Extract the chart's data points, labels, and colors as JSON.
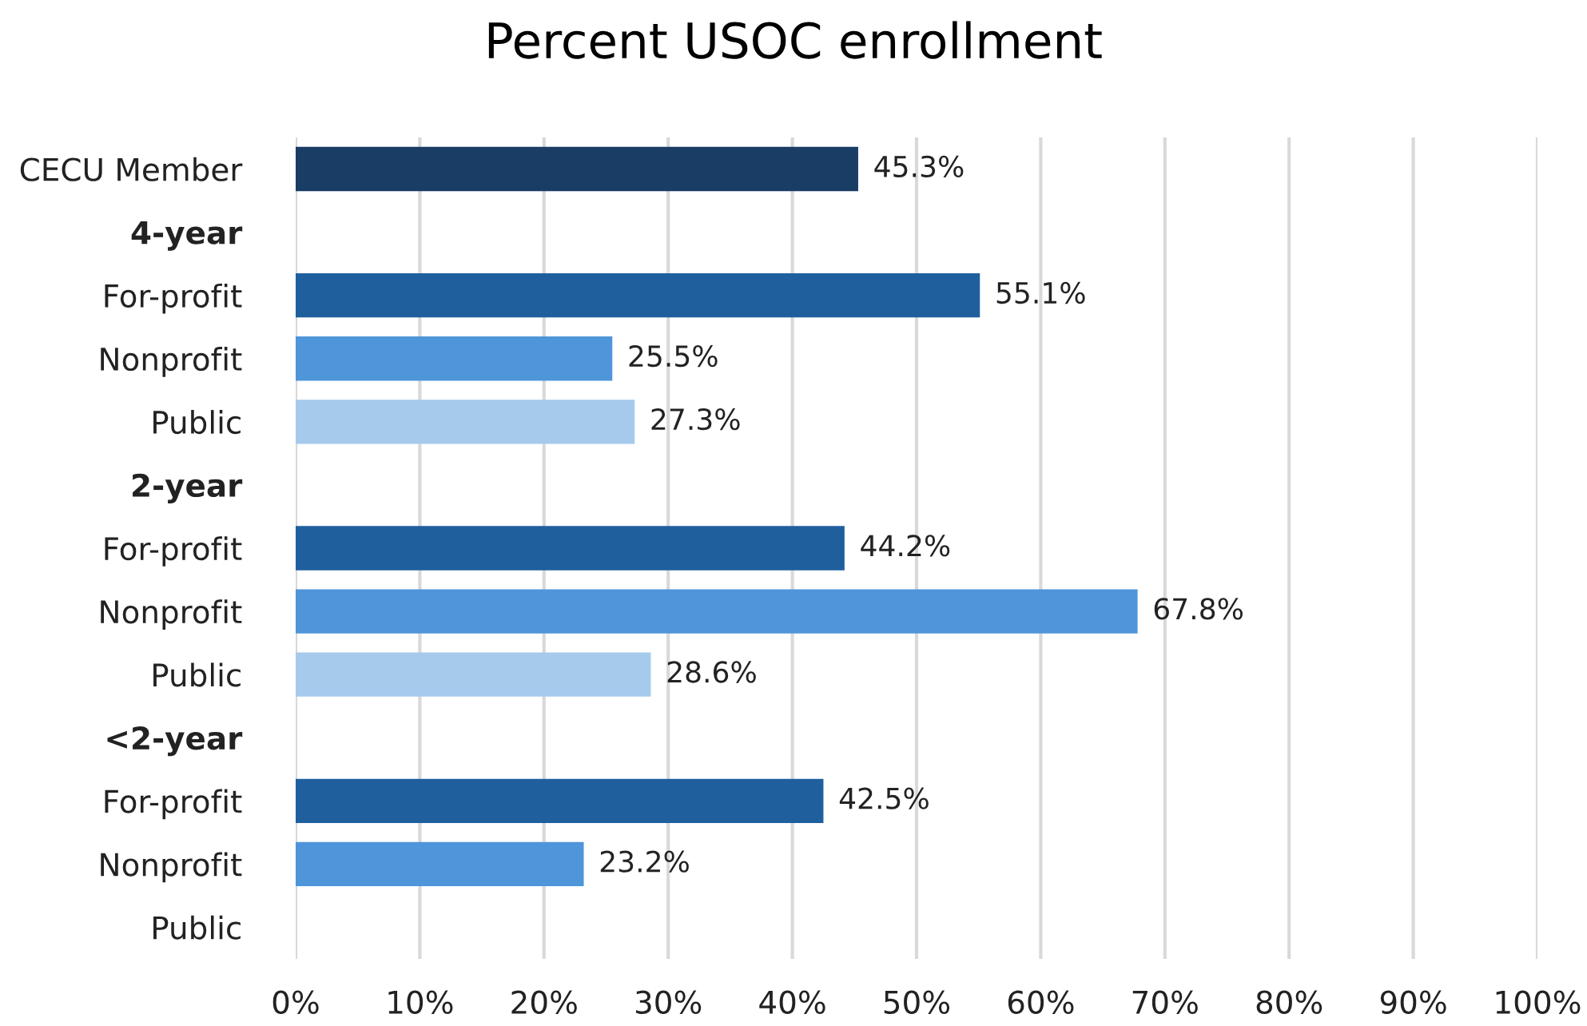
{
  "chart_data": {
    "type": "bar",
    "orientation": "horizontal",
    "title": "Percent USOC enrollment",
    "categories": [
      "CECU Member",
      "4-year",
      "For-profit",
      "Nonprofit",
      "Public",
      "2-year",
      "For-profit",
      "Nonprofit",
      "Public",
      "<2-year",
      "For-profit",
      "Nonprofit",
      "Public"
    ],
    "values": [
      45.3,
      null,
      55.1,
      25.5,
      27.3,
      null,
      44.2,
      67.8,
      28.6,
      null,
      42.5,
      23.2,
      null
    ],
    "colors": [
      "#1a3d66",
      null,
      "#1f5f9e",
      "#4f95d9",
      "#a6caec",
      null,
      "#1f5f9e",
      "#4f95d9",
      "#a6caec",
      null,
      "#1f5f9e",
      "#4f95d9",
      "#a6caec"
    ],
    "value_labels": [
      "45.3%",
      null,
      "55.1%",
      "25.5%",
      "27.3%",
      null,
      "44.2%",
      "67.8%",
      "28.6%",
      null,
      "42.5%",
      "23.2%",
      null
    ],
    "xlim": [
      0,
      100
    ],
    "xticks": [
      {
        "value": 0,
        "label": "0%"
      },
      {
        "value": 10,
        "label": "10%"
      },
      {
        "value": 20,
        "label": "20%"
      },
      {
        "value": 30,
        "label": "30%"
      },
      {
        "value": 40,
        "label": "40%"
      },
      {
        "value": 50,
        "label": "50%"
      },
      {
        "value": 60,
        "label": "60%"
      },
      {
        "value": 70,
        "label": "70%"
      },
      {
        "value": 80,
        "label": "80%"
      },
      {
        "value": 90,
        "label": "90%"
      },
      {
        "value": 100,
        "label": "100%"
      }
    ],
    "grid": "x",
    "legend": false
  }
}
